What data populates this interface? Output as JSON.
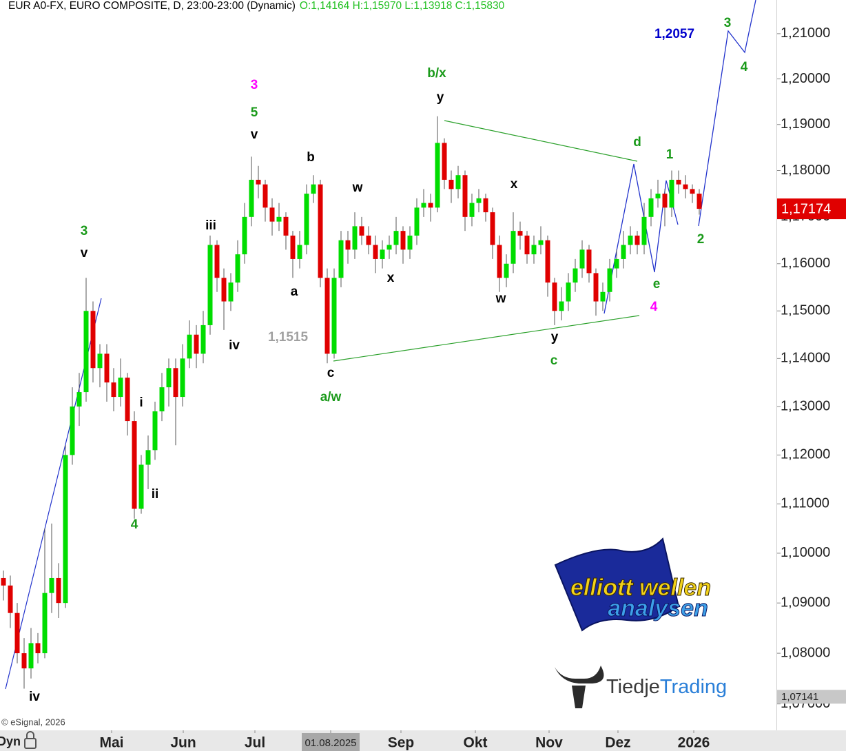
{
  "chart_data": {
    "type": "candlestick",
    "title": "EUR A0-FX, EURO COMPOSITE, D, 23:00-23:00 (Dynamic)",
    "ohlc_text": "O:1,14164 H:1,15970 L:1,13918 C:1,15830",
    "log_scale": true,
    "up_color": "#00dd00",
    "down_color": "#e00000",
    "ylim": [
      1.0651,
      1.2175
    ],
    "yticks": [
      {
        "value": 1.07,
        "label": "1,07000"
      },
      {
        "value": 1.08,
        "label": "1,08000"
      },
      {
        "value": 1.09,
        "label": "1,09000"
      },
      {
        "value": 1.1,
        "label": "1,10000"
      },
      {
        "value": 1.11,
        "label": "1,11000"
      },
      {
        "value": 1.12,
        "label": "1,12000"
      },
      {
        "value": 1.13,
        "label": "1,13000"
      },
      {
        "value": 1.14,
        "label": "1,14000"
      },
      {
        "value": 1.15,
        "label": "1,15000"
      },
      {
        "value": 1.16,
        "label": "1,16000"
      },
      {
        "value": 1.17,
        "label": "1,17000"
      },
      {
        "value": 1.18,
        "label": "1,18000"
      },
      {
        "value": 1.19,
        "label": "1,19000"
      },
      {
        "value": 1.2,
        "label": "1,20000"
      },
      {
        "value": 1.21,
        "label": "1,21000"
      }
    ],
    "xlim": [
      -0.5,
      112.3
    ],
    "xticks": [
      {
        "value": 15.7,
        "label": "Mai"
      },
      {
        "value": 26.1,
        "label": "Jun"
      },
      {
        "value": 36.5,
        "label": "Jul"
      },
      {
        "value": 47.5,
        "label": "01.08.2025"
      },
      {
        "value": 57.7,
        "label": "Sep"
      },
      {
        "value": 68.5,
        "label": "Okt"
      },
      {
        "value": 79.2,
        "label": "Nov"
      },
      {
        "value": 89.2,
        "label": "Dez"
      },
      {
        "value": 100.2,
        "label": "2026"
      }
    ],
    "last_price": {
      "value": 1.17174,
      "label": "1,17174"
    },
    "low_marker": {
      "value": 1.07141,
      "label": "1,07141"
    },
    "candles": [
      [
        1.095,
        1.0965,
        1.0905,
        1.0935
      ],
      [
        1.0935,
        1.0955,
        1.085,
        1.088
      ],
      [
        1.088,
        1.09,
        1.078,
        1.08
      ],
      [
        1.08,
        1.083,
        1.073,
        1.077
      ],
      [
        1.077,
        1.085,
        1.075,
        1.082
      ],
      [
        1.082,
        1.084,
        1.078,
        1.08
      ],
      [
        1.08,
        1.105,
        1.079,
        1.092
      ],
      [
        1.092,
        1.106,
        1.088,
        1.095
      ],
      [
        1.095,
        1.098,
        1.087,
        1.09
      ],
      [
        1.09,
        1.122,
        1.089,
        1.12
      ],
      [
        1.12,
        1.134,
        1.118,
        1.13
      ],
      [
        1.13,
        1.137,
        1.126,
        1.133
      ],
      [
        1.133,
        1.157,
        1.131,
        1.15
      ],
      [
        1.15,
        1.152,
        1.135,
        1.138
      ],
      [
        1.138,
        1.143,
        1.134,
        1.141
      ],
      [
        1.141,
        1.143,
        1.131,
        1.135
      ],
      [
        1.135,
        1.138,
        1.129,
        1.132
      ],
      [
        1.132,
        1.14,
        1.13,
        1.136
      ],
      [
        1.136,
        1.137,
        1.124,
        1.127
      ],
      [
        1.127,
        1.129,
        1.107,
        1.109
      ],
      [
        1.109,
        1.12,
        1.108,
        1.118
      ],
      [
        1.118,
        1.124,
        1.113,
        1.121
      ],
      [
        1.121,
        1.131,
        1.119,
        1.129
      ],
      [
        1.129,
        1.137,
        1.127,
        1.134
      ],
      [
        1.134,
        1.14,
        1.13,
        1.138
      ],
      [
        1.138,
        1.14,
        1.122,
        1.132
      ],
      [
        1.132,
        1.143,
        1.13,
        1.14
      ],
      [
        1.14,
        1.148,
        1.138,
        1.145
      ],
      [
        1.145,
        1.147,
        1.138,
        1.141
      ],
      [
        1.141,
        1.15,
        1.139,
        1.147
      ],
      [
        1.147,
        1.166,
        1.145,
        1.164
      ],
      [
        1.164,
        1.165,
        1.154,
        1.157
      ],
      [
        1.157,
        1.159,
        1.146,
        1.152
      ],
      [
        1.152,
        1.158,
        1.15,
        1.156
      ],
      [
        1.156,
        1.165,
        1.154,
        1.162
      ],
      [
        1.162,
        1.173,
        1.16,
        1.17
      ],
      [
        1.17,
        1.183,
        1.168,
        1.178
      ],
      [
        1.178,
        1.181,
        1.174,
        1.177
      ],
      [
        1.177,
        1.178,
        1.169,
        1.172
      ],
      [
        1.172,
        1.174,
        1.166,
        1.169
      ],
      [
        1.169,
        1.173,
        1.167,
        1.17
      ],
      [
        1.17,
        1.171,
        1.163,
        1.166
      ],
      [
        1.166,
        1.167,
        1.157,
        1.161
      ],
      [
        1.161,
        1.167,
        1.159,
        1.164
      ],
      [
        1.164,
        1.177,
        1.162,
        1.175
      ],
      [
        1.175,
        1.179,
        1.173,
        1.177
      ],
      [
        1.177,
        1.178,
        1.155,
        1.157
      ],
      [
        1.157,
        1.159,
        1.139,
        1.141
      ],
      [
        1.141,
        1.159,
        1.14,
        1.157
      ],
      [
        1.157,
        1.167,
        1.155,
        1.165
      ],
      [
        1.165,
        1.167,
        1.16,
        1.163
      ],
      [
        1.163,
        1.171,
        1.161,
        1.168
      ],
      [
        1.168,
        1.17,
        1.164,
        1.166
      ],
      [
        1.166,
        1.168,
        1.162,
        1.164
      ],
      [
        1.164,
        1.166,
        1.158,
        1.161
      ],
      [
        1.161,
        1.165,
        1.159,
        1.163
      ],
      [
        1.163,
        1.166,
        1.161,
        1.164
      ],
      [
        1.164,
        1.17,
        1.162,
        1.167
      ],
      [
        1.167,
        1.168,
        1.16,
        1.163
      ],
      [
        1.163,
        1.168,
        1.161,
        1.166
      ],
      [
        1.166,
        1.174,
        1.164,
        1.172
      ],
      [
        1.172,
        1.176,
        1.17,
        1.173
      ],
      [
        1.173,
        1.175,
        1.169,
        1.172
      ],
      [
        1.172,
        1.1918,
        1.171,
        1.186
      ],
      [
        1.186,
        1.187,
        1.176,
        1.178
      ],
      [
        1.178,
        1.18,
        1.173,
        1.176
      ],
      [
        1.176,
        1.181,
        1.174,
        1.179
      ],
      [
        1.179,
        1.18,
        1.167,
        1.17
      ],
      [
        1.17,
        1.175,
        1.168,
        1.173
      ],
      [
        1.173,
        1.176,
        1.171,
        1.174
      ],
      [
        1.174,
        1.175,
        1.169,
        1.171
      ],
      [
        1.171,
        1.172,
        1.161,
        1.164
      ],
      [
        1.164,
        1.166,
        1.154,
        1.157
      ],
      [
        1.157,
        1.162,
        1.155,
        1.16
      ],
      [
        1.16,
        1.171,
        1.158,
        1.167
      ],
      [
        1.167,
        1.169,
        1.163,
        1.166
      ],
      [
        1.166,
        1.167,
        1.16,
        1.162
      ],
      [
        1.162,
        1.166,
        1.16,
        1.164
      ],
      [
        1.164,
        1.168,
        1.162,
        1.165
      ],
      [
        1.165,
        1.166,
        1.153,
        1.156
      ],
      [
        1.156,
        1.157,
        1.147,
        1.15
      ],
      [
        1.15,
        1.155,
        1.148,
        1.152
      ],
      [
        1.152,
        1.158,
        1.15,
        1.156
      ],
      [
        1.156,
        1.161,
        1.154,
        1.159
      ],
      [
        1.159,
        1.165,
        1.157,
        1.163
      ],
      [
        1.163,
        1.164,
        1.156,
        1.158
      ],
      [
        1.158,
        1.159,
        1.149,
        1.152
      ],
      [
        1.152,
        1.156,
        1.15,
        1.154
      ],
      [
        1.154,
        1.161,
        1.152,
        1.159
      ],
      [
        1.159,
        1.163,
        1.157,
        1.161
      ],
      [
        1.161,
        1.167,
        1.159,
        1.164
      ],
      [
        1.164,
        1.168,
        1.162,
        1.166
      ],
      [
        1.166,
        1.167,
        1.162,
        1.164
      ],
      [
        1.164,
        1.173,
        1.162,
        1.17
      ],
      [
        1.17,
        1.176,
        1.168,
        1.174
      ],
      [
        1.174,
        1.178,
        1.172,
        1.175
      ],
      [
        1.175,
        1.176,
        1.168,
        1.172
      ],
      [
        1.172,
        1.18,
        1.17,
        1.178
      ],
      [
        1.178,
        1.18,
        1.175,
        1.177
      ],
      [
        1.177,
        1.179,
        1.174,
        1.176
      ],
      [
        1.176,
        1.177,
        1.173,
        1.175
      ],
      [
        1.175,
        1.176,
        1.1705,
        1.17174
      ]
    ],
    "annotations": [
      {
        "text": "3",
        "color": "#1a9a1a"
      },
      {
        "text": "v",
        "color": "#000000"
      },
      {
        "text": "iv",
        "color": "#000000"
      },
      {
        "text": "4",
        "color": "#1a9a1a"
      },
      {
        "text": "ii",
        "color": "#000000"
      },
      {
        "text": "i",
        "color": "#000000"
      },
      {
        "text": "iii",
        "color": "#000000"
      },
      {
        "text": "iv",
        "color": "#000000"
      },
      {
        "text": "3",
        "color": "#ff00ff"
      },
      {
        "text": "5",
        "color": "#1a9a1a"
      },
      {
        "text": "v",
        "color": "#000000"
      },
      {
        "text": "b",
        "color": "#000000"
      },
      {
        "text": "a",
        "color": "#000000"
      },
      {
        "text": "c",
        "color": "#000000"
      },
      {
        "text": "a/w",
        "color": "#1a9a1a"
      },
      {
        "text": "1,1515",
        "color": "#a0a0a0"
      },
      {
        "text": "b/x",
        "color": "#1a9a1a"
      },
      {
        "text": "y",
        "color": "#000000"
      },
      {
        "text": "w",
        "color": "#000000"
      },
      {
        "text": "x",
        "color": "#000000"
      },
      {
        "text": "x",
        "color": "#000000"
      },
      {
        "text": "w",
        "color": "#000000"
      },
      {
        "text": "y",
        "color": "#000000"
      },
      {
        "text": "c",
        "color": "#1a9a1a"
      },
      {
        "text": "d",
        "color": "#1a9a1a"
      },
      {
        "text": "e",
        "color": "#1a9a1a"
      },
      {
        "text": "4",
        "color": "#ff00ff"
      },
      {
        "text": "1",
        "color": "#1a9a1a"
      },
      {
        "text": "2",
        "color": "#1a9a1a"
      },
      {
        "text": "3",
        "color": "#1a9a1a"
      },
      {
        "text": "4",
        "color": "#1a9a1a"
      },
      {
        "text": "1,2057",
        "color": "#0000cc"
      }
    ],
    "footer_left": "Dyn",
    "copyright": "© eSignal, 2026",
    "logo_1_line_1": "elliott wellen",
    "logo_1_line_2": "analysen",
    "logo_2_part_1": "Tiedje",
    "logo_2_part_2": "Trading"
  }
}
